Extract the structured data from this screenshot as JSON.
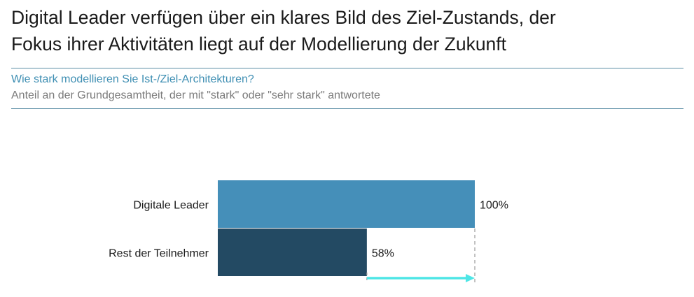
{
  "headline": {
    "line1": "Digital Leader verfügen über ein klares Bild des Ziel-Zustands, der",
    "line2": "Fokus ihrer Aktivitäten liegt auf der Modellierung der Zukunft"
  },
  "question": "Wie stark modellieren Sie Ist-/Ziel-Architekturen?",
  "subtext": "Anteil an der Grundgesamtheit, der mit \"stark\" oder \"sehr stark\" antwortete",
  "chart_data": {
    "type": "bar",
    "orientation": "horizontal",
    "categories": [
      "Digitale Leader",
      "Rest der Teilnehmer"
    ],
    "values": [
      100,
      58
    ],
    "value_labels": [
      "100%",
      "58%"
    ],
    "unit": "%",
    "xlim": [
      0,
      100
    ],
    "grid": false,
    "colors": [
      "#458fb9",
      "#234a63"
    ],
    "gap_arrow": {
      "from": 58,
      "to": 100,
      "color": "#4ee6e6"
    },
    "reference_line": {
      "at": 100,
      "style": "dashed",
      "color": "#9a9a9a"
    }
  }
}
